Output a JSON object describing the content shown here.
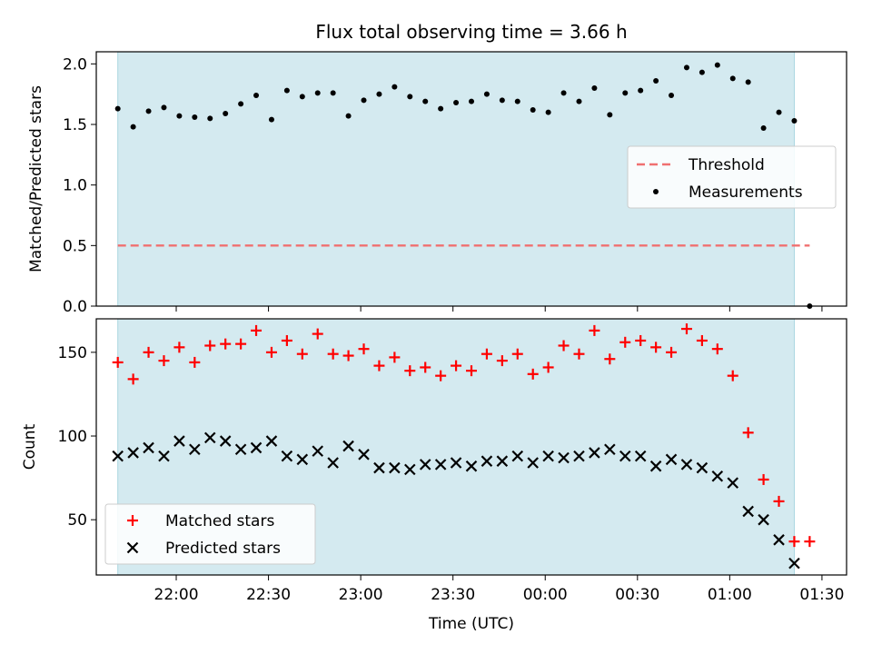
{
  "figure": {
    "title": "Flux total observing time = 3.66 h",
    "xlabel": "Time (UTC)"
  },
  "colors": {
    "shade": "#d4eaf0",
    "shade_edge": "#a9d6e0",
    "threshold": "#f07070",
    "matched": "#ff0000",
    "predicted": "#000000",
    "measurements": "#000000"
  },
  "chart_data": [
    {
      "type": "scatter",
      "ylabel": "Matched/Predicted stars",
      "ylim": [
        0,
        2.1
      ],
      "yticks": [
        "0.0",
        "0.5",
        "1.0",
        "1.5",
        "2.0"
      ],
      "xlim": [
        "21:34",
        "01:38"
      ],
      "shaded_span": [
        "21:41",
        "01:21"
      ],
      "threshold": {
        "name": "Threshold",
        "value": 0.5,
        "x": [
          "21:41",
          "01:26"
        ]
      },
      "legend": {
        "position": "center-right",
        "entries": [
          "Threshold",
          "Measurements"
        ]
      },
      "series": [
        {
          "name": "Measurements",
          "x": [
            "21:41",
            "21:46",
            "21:51",
            "21:56",
            "22:01",
            "22:06",
            "22:11",
            "22:16",
            "22:21",
            "22:26",
            "22:31",
            "22:36",
            "22:41",
            "22:46",
            "22:51",
            "22:56",
            "23:01",
            "23:06",
            "23:11",
            "23:16",
            "23:21",
            "23:26",
            "23:31",
            "23:36",
            "23:41",
            "23:46",
            "23:51",
            "23:56",
            "00:01",
            "00:06",
            "00:11",
            "00:16",
            "00:21",
            "00:26",
            "00:31",
            "00:36",
            "00:41",
            "00:46",
            "00:51",
            "00:56",
            "01:01",
            "01:06",
            "01:11",
            "01:16",
            "01:21",
            "01:26"
          ],
          "y": [
            1.63,
            1.48,
            1.61,
            1.64,
            1.57,
            1.56,
            1.55,
            1.59,
            1.67,
            1.74,
            1.54,
            1.78,
            1.73,
            1.76,
            1.76,
            1.57,
            1.7,
            1.75,
            1.81,
            1.73,
            1.69,
            1.63,
            1.68,
            1.69,
            1.75,
            1.7,
            1.69,
            1.62,
            1.6,
            1.76,
            1.69,
            1.8,
            1.58,
            1.76,
            1.78,
            1.86,
            1.74,
            1.97,
            1.93,
            1.99,
            1.88,
            1.85,
            1.47,
            1.6,
            1.53,
            0.0
          ]
        }
      ]
    },
    {
      "type": "scatter",
      "ylabel": "Count",
      "ylim": [
        17,
        170
      ],
      "yticks": [
        "50",
        "100",
        "150"
      ],
      "xticks": [
        "22:00",
        "22:30",
        "23:00",
        "23:30",
        "00:00",
        "00:30",
        "01:00",
        "01:30"
      ],
      "legend": {
        "position": "lower-left",
        "entries": [
          "Matched stars",
          "Predicted stars"
        ]
      },
      "series": [
        {
          "name": "Matched stars",
          "x": [
            "21:41",
            "21:46",
            "21:51",
            "21:56",
            "22:01",
            "22:06",
            "22:11",
            "22:16",
            "22:21",
            "22:26",
            "22:31",
            "22:36",
            "22:41",
            "22:46",
            "22:51",
            "22:56",
            "23:01",
            "23:06",
            "23:11",
            "23:16",
            "23:21",
            "23:26",
            "23:31",
            "23:36",
            "23:41",
            "23:46",
            "23:51",
            "23:56",
            "00:01",
            "00:06",
            "00:11",
            "00:16",
            "00:21",
            "00:26",
            "00:31",
            "00:36",
            "00:41",
            "00:46",
            "00:51",
            "00:56",
            "01:01",
            "01:06",
            "01:11",
            "01:16",
            "01:21",
            "01:26"
          ],
          "y": [
            144,
            134,
            150,
            145,
            153,
            144,
            154,
            155,
            155,
            163,
            150,
            157,
            149,
            161,
            149,
            148,
            152,
            142,
            147,
            139,
            141,
            136,
            142,
            139,
            149,
            145,
            149,
            137,
            141,
            154,
            149,
            163,
            146,
            156,
            157,
            153,
            150,
            164,
            157,
            152,
            136,
            102,
            74,
            61,
            37,
            37
          ]
        },
        {
          "name": "Predicted stars",
          "x": [
            "21:41",
            "21:46",
            "21:51",
            "21:56",
            "22:01",
            "22:06",
            "22:11",
            "22:16",
            "22:21",
            "22:26",
            "22:31",
            "22:36",
            "22:41",
            "22:46",
            "22:51",
            "22:56",
            "23:01",
            "23:06",
            "23:11",
            "23:16",
            "23:21",
            "23:26",
            "23:31",
            "23:36",
            "23:41",
            "23:46",
            "23:51",
            "23:56",
            "00:01",
            "00:06",
            "00:11",
            "00:16",
            "00:21",
            "00:26",
            "00:31",
            "00:36",
            "00:41",
            "00:46",
            "00:51",
            "00:56",
            "01:01",
            "01:06",
            "01:11",
            "01:16",
            "01:21"
          ],
          "y": [
            88,
            90,
            93,
            88,
            97,
            92,
            99,
            97,
            92,
            93,
            97,
            88,
            86,
            91,
            84,
            94,
            89,
            81,
            81,
            80,
            83,
            83,
            84,
            82,
            85,
            85,
            88,
            84,
            88,
            87,
            88,
            90,
            92,
            88,
            88,
            82,
            86,
            83,
            81,
            76,
            72,
            55,
            50,
            38,
            24
          ]
        }
      ]
    }
  ]
}
